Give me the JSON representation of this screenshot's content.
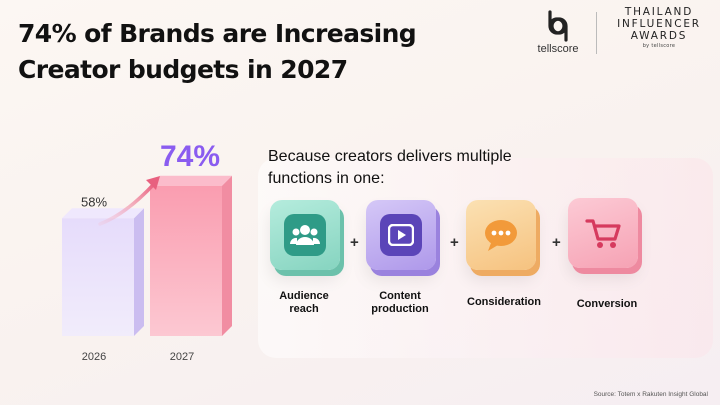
{
  "headline": {
    "line1": "74% of Brands are Increasing",
    "line2": "Creator budgets in 2027"
  },
  "logos": {
    "tellscore": "tellscore",
    "awards_line1": "THAILAND",
    "awards_line2": "INFLUENCER",
    "awards_line3": "AWARDS",
    "awards_by": "by tellscore"
  },
  "chart_data": {
    "type": "bar",
    "categories": [
      "2026",
      "2027"
    ],
    "values": [
      58,
      74
    ],
    "value_labels": [
      "58%",
      "74%"
    ],
    "title": "",
    "xlabel": "",
    "ylabel": "",
    "ylim": [
      0,
      100
    ],
    "grid": false,
    "colors": [
      "#d9cdf5",
      "#f7a6b6"
    ]
  },
  "functions": {
    "title": "Because creators delivers multiple functions in one:",
    "items": [
      {
        "label_line1": "Audience",
        "label_line2": "reach",
        "icon": "people-icon",
        "color": "#8fd9c6"
      },
      {
        "label_line1": "Content",
        "label_line2": "production",
        "icon": "play-video-icon",
        "color": "#b7a3ee"
      },
      {
        "label_line1": "Consideration",
        "label_line2": "",
        "icon": "chat-bubble-icon",
        "color": "#f7c98a"
      },
      {
        "label_line1": "Conversion",
        "label_line2": "",
        "icon": "shopping-cart-icon",
        "color": "#f7a3b5"
      }
    ],
    "separator": "+"
  },
  "source": "Source: Totem x Rakuten Insight Global"
}
